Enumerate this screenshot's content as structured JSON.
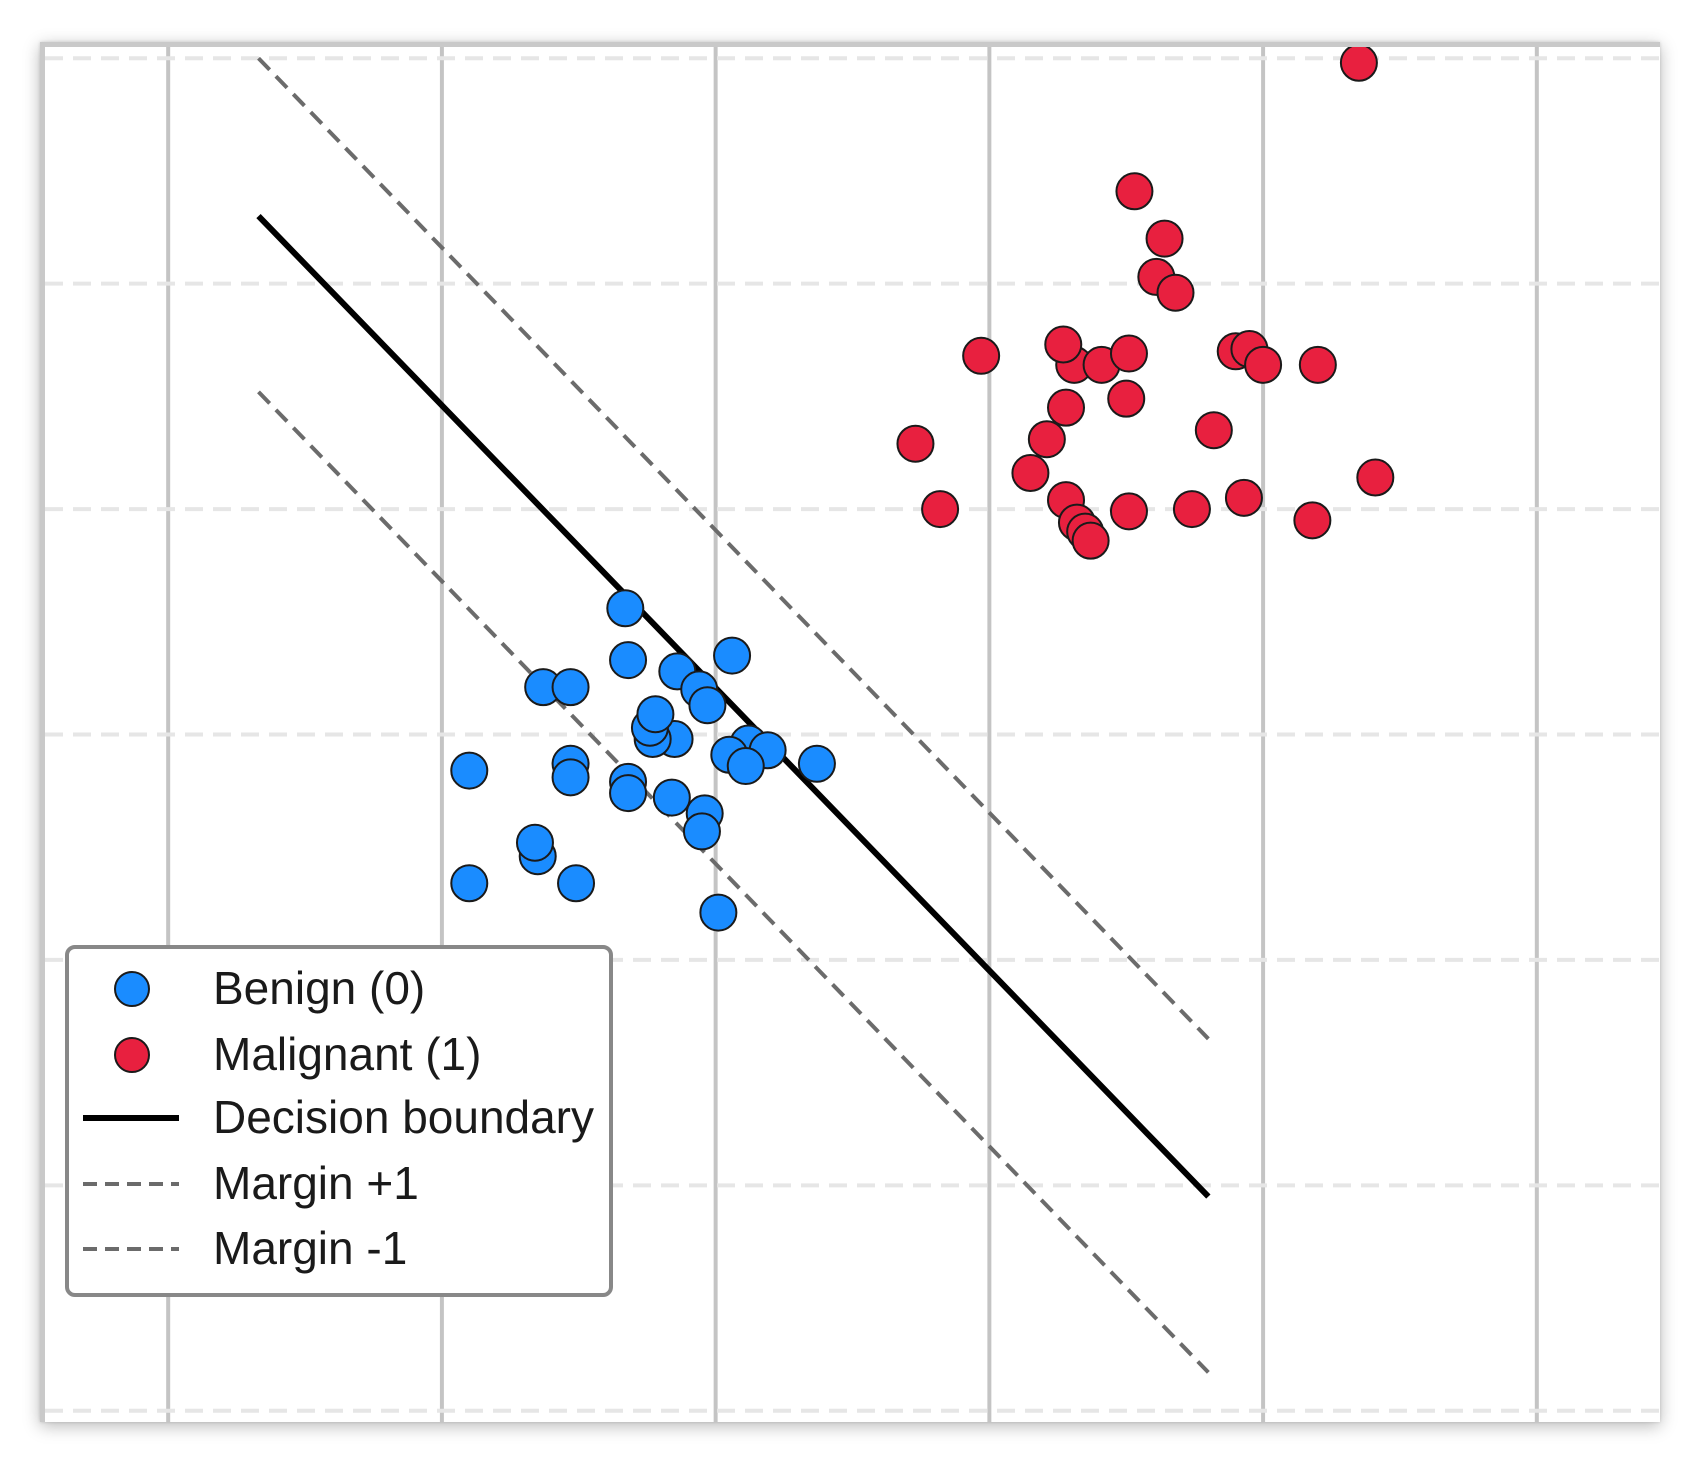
{
  "chart_data": {
    "type": "scatter",
    "title": "",
    "xlabel": "",
    "ylabel": "",
    "xlim": [
      -0.45,
      5.45
    ],
    "ylim": [
      -0.05,
      6.05
    ],
    "grid": {
      "vertical": "solid",
      "horizontal": "dashed"
    },
    "tick_labels_visible": false,
    "legend_position": "bottom-left",
    "colors": {
      "benign": "#1a8cff",
      "malignant": "#e8203f",
      "boundary": "#000000",
      "margin": "#6b6b6b",
      "point_edge": "#1a1a1a"
    },
    "series": [
      {
        "name": "Benign (0)",
        "points": [
          [
            1.67,
            3.56
          ],
          [
            1.68,
            3.33
          ],
          [
            1.86,
            3.28
          ],
          [
            2.06,
            3.35
          ],
          [
            1.37,
            3.21
          ],
          [
            1.47,
            3.21
          ],
          [
            1.94,
            3.2
          ],
          [
            1.97,
            3.13
          ],
          [
            1.85,
            2.98
          ],
          [
            1.77,
            2.98
          ],
          [
            1.76,
            3.03
          ],
          [
            1.78,
            3.09
          ],
          [
            2.12,
            2.96
          ],
          [
            2.19,
            2.93
          ],
          [
            2.05,
            2.91
          ],
          [
            2.11,
            2.86
          ],
          [
            2.37,
            2.87
          ],
          [
            1.47,
            2.87
          ],
          [
            1.47,
            2.81
          ],
          [
            1.68,
            2.79
          ],
          [
            1.68,
            2.74
          ],
          [
            1.84,
            2.72
          ],
          [
            1.96,
            2.65
          ],
          [
            1.95,
            2.57
          ],
          [
            1.1,
            2.84
          ],
          [
            1.35,
            2.46
          ],
          [
            1.34,
            2.52
          ],
          [
            1.1,
            2.34
          ],
          [
            1.49,
            2.34
          ],
          [
            2.01,
            2.21
          ]
        ]
      },
      {
        "name": "Malignant (1)",
        "points": [
          [
            4.35,
            5.98
          ],
          [
            3.53,
            5.41
          ],
          [
            3.64,
            5.2
          ],
          [
            3.61,
            5.03
          ],
          [
            3.68,
            4.96
          ],
          [
            2.97,
            4.68
          ],
          [
            3.31,
            4.64
          ],
          [
            3.41,
            4.64
          ],
          [
            3.27,
            4.73
          ],
          [
            3.51,
            4.69
          ],
          [
            3.9,
            4.7
          ],
          [
            3.95,
            4.71
          ],
          [
            4.0,
            4.64
          ],
          [
            4.2,
            4.64
          ],
          [
            3.5,
            4.49
          ],
          [
            3.28,
            4.45
          ],
          [
            3.82,
            4.35
          ],
          [
            3.21,
            4.31
          ],
          [
            2.73,
            4.29
          ],
          [
            3.15,
            4.16
          ],
          [
            4.41,
            4.14
          ],
          [
            3.93,
            4.05
          ],
          [
            3.74,
            4.0
          ],
          [
            2.82,
            4.0
          ],
          [
            3.28,
            4.04
          ],
          [
            3.51,
            3.99
          ],
          [
            4.18,
            3.95
          ],
          [
            3.32,
            3.94
          ],
          [
            3.35,
            3.9
          ],
          [
            3.37,
            3.86
          ]
        ]
      }
    ],
    "lines": [
      {
        "name": "Decision boundary",
        "style": "solid",
        "x": [
          0.33,
          3.8
        ],
        "y": [
          5.3,
          0.95
        ]
      },
      {
        "name": "Margin +1",
        "style": "dashed",
        "x": [
          0.33,
          3.8
        ],
        "y": [
          6.0,
          1.65
        ]
      },
      {
        "name": "Margin -1",
        "style": "dashed",
        "x": [
          0.33,
          3.8
        ],
        "y": [
          4.52,
          0.17
        ]
      }
    ]
  }
}
